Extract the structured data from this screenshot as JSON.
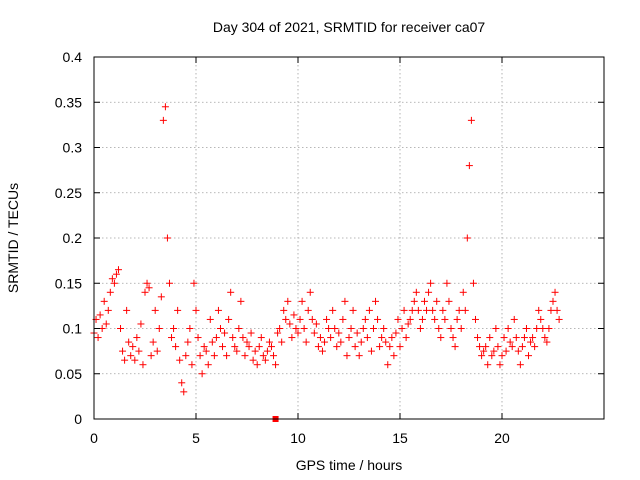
{
  "chart_data": {
    "type": "scatter",
    "title": "Day 304 of 2021, SRMTID for receiver ca07",
    "xlabel": "GPS time / hours",
    "ylabel": "SRMTID / TECUs",
    "xlim": [
      0,
      25
    ],
    "ylim": [
      0,
      0.4
    ],
    "xticks": [
      0,
      5,
      10,
      15,
      20
    ],
    "xtick_labels": [
      "0",
      "5",
      "10",
      "15",
      "20"
    ],
    "yticks": [
      0,
      0.05,
      0.1,
      0.15,
      0.2,
      0.25,
      0.3,
      0.35,
      0.4
    ],
    "ytick_labels": [
      "0",
      "0.05",
      "0.1",
      "0.15",
      "0.2",
      "0.25",
      "0.3",
      "0.35",
      "0.4"
    ],
    "grid": true,
    "marker": "plus",
    "marker_color": "#ff0000",
    "special_marker": {
      "x": 8.9,
      "y": 0.0,
      "shape": "square"
    },
    "series": [
      {
        "name": "SRMTID",
        "x": [
          0.0,
          0.1,
          0.2,
          0.3,
          0.4,
          0.5,
          0.6,
          0.7,
          0.8,
          0.9,
          1.0,
          1.1,
          1.2,
          1.3,
          1.4,
          1.5,
          1.6,
          1.7,
          1.8,
          1.9,
          2.0,
          2.1,
          2.2,
          2.3,
          2.4,
          2.5,
          2.6,
          2.7,
          2.8,
          2.9,
          3.0,
          3.1,
          3.2,
          3.3,
          3.4,
          3.5,
          3.6,
          3.7,
          3.8,
          3.9,
          4.0,
          4.1,
          4.2,
          4.3,
          4.4,
          4.5,
          4.6,
          4.7,
          4.8,
          4.9,
          5.0,
          5.1,
          5.2,
          5.3,
          5.4,
          5.5,
          5.6,
          5.7,
          5.8,
          5.9,
          6.0,
          6.1,
          6.2,
          6.3,
          6.4,
          6.5,
          6.6,
          6.7,
          6.8,
          6.9,
          7.0,
          7.1,
          7.2,
          7.3,
          7.4,
          7.5,
          7.6,
          7.7,
          7.8,
          7.9,
          8.0,
          8.1,
          8.2,
          8.3,
          8.4,
          8.5,
          8.6,
          8.7,
          8.8,
          8.9,
          9.0,
          9.1,
          9.2,
          9.3,
          9.4,
          9.5,
          9.6,
          9.7,
          9.8,
          9.9,
          10.0,
          10.1,
          10.2,
          10.3,
          10.4,
          10.5,
          10.6,
          10.7,
          10.8,
          10.9,
          11.0,
          11.1,
          11.2,
          11.3,
          11.4,
          11.5,
          11.6,
          11.7,
          11.8,
          11.9,
          12.0,
          12.1,
          12.2,
          12.3,
          12.4,
          12.5,
          12.6,
          12.7,
          12.8,
          12.9,
          13.0,
          13.1,
          13.2,
          13.3,
          13.4,
          13.5,
          13.6,
          13.7,
          13.8,
          13.9,
          14.0,
          14.1,
          14.2,
          14.3,
          14.4,
          14.5,
          14.6,
          14.7,
          14.8,
          14.9,
          15.0,
          15.1,
          15.2,
          15.3,
          15.4,
          15.5,
          15.6,
          15.7,
          15.8,
          15.9,
          16.0,
          16.1,
          16.2,
          16.3,
          16.4,
          16.5,
          16.6,
          16.7,
          16.8,
          16.9,
          17.0,
          17.1,
          17.2,
          17.3,
          17.4,
          17.5,
          17.6,
          17.7,
          17.8,
          17.9,
          18.0,
          18.1,
          18.2,
          18.3,
          18.4,
          18.5,
          18.6,
          18.7,
          18.8,
          18.9,
          19.0,
          19.1,
          19.2,
          19.3,
          19.4,
          19.5,
          19.6,
          19.7,
          19.8,
          19.9,
          20.0,
          20.1,
          20.2,
          20.3,
          20.4,
          20.5,
          20.6,
          20.7,
          20.8,
          20.9,
          21.0,
          21.1,
          21.2,
          21.3,
          21.4,
          21.5,
          21.6,
          21.7,
          21.8,
          21.9,
          22.0,
          22.1,
          22.2,
          22.3,
          22.4,
          22.5,
          22.6,
          22.7,
          22.8
        ],
        "y": [
          0.095,
          0.11,
          0.09,
          0.115,
          0.1,
          0.13,
          0.105,
          0.12,
          0.14,
          0.155,
          0.15,
          0.16,
          0.165,
          0.1,
          0.075,
          0.065,
          0.12,
          0.085,
          0.07,
          0.08,
          0.065,
          0.09,
          0.075,
          0.105,
          0.06,
          0.14,
          0.15,
          0.145,
          0.07,
          0.085,
          0.12,
          0.075,
          0.1,
          0.135,
          0.33,
          0.345,
          0.2,
          0.15,
          0.09,
          0.1,
          0.08,
          0.12,
          0.065,
          0.04,
          0.03,
          0.07,
          0.085,
          0.1,
          0.06,
          0.15,
          0.12,
          0.09,
          0.07,
          0.05,
          0.08,
          0.075,
          0.06,
          0.11,
          0.085,
          0.07,
          0.09,
          0.12,
          0.1,
          0.08,
          0.095,
          0.07,
          0.11,
          0.14,
          0.09,
          0.08,
          0.075,
          0.1,
          0.13,
          0.09,
          0.07,
          0.085,
          0.08,
          0.095,
          0.065,
          0.075,
          0.06,
          0.08,
          0.09,
          0.07,
          0.065,
          0.075,
          0.085,
          0.08,
          0.07,
          0.06,
          0.095,
          0.1,
          0.085,
          0.12,
          0.11,
          0.13,
          0.105,
          0.09,
          0.115,
          0.1,
          0.095,
          0.11,
          0.13,
          0.1,
          0.085,
          0.12,
          0.14,
          0.11,
          0.095,
          0.105,
          0.08,
          0.09,
          0.075,
          0.085,
          0.11,
          0.1,
          0.09,
          0.12,
          0.1,
          0.08,
          0.095,
          0.085,
          0.11,
          0.13,
          0.07,
          0.09,
          0.1,
          0.12,
          0.08,
          0.095,
          0.07,
          0.085,
          0.1,
          0.11,
          0.09,
          0.12,
          0.075,
          0.1,
          0.13,
          0.11,
          0.08,
          0.09,
          0.1,
          0.085,
          0.06,
          0.08,
          0.09,
          0.07,
          0.095,
          0.11,
          0.08,
          0.1,
          0.12,
          0.09,
          0.105,
          0.11,
          0.12,
          0.13,
          0.14,
          0.12,
          0.1,
          0.11,
          0.13,
          0.12,
          0.14,
          0.15,
          0.12,
          0.11,
          0.13,
          0.1,
          0.09,
          0.12,
          0.11,
          0.15,
          0.13,
          0.1,
          0.09,
          0.08,
          0.11,
          0.12,
          0.1,
          0.14,
          0.12,
          0.2,
          0.28,
          0.33,
          0.15,
          0.11,
          0.09,
          0.08,
          0.07,
          0.075,
          0.08,
          0.06,
          0.09,
          0.07,
          0.075,
          0.1,
          0.08,
          0.06,
          0.07,
          0.09,
          0.075,
          0.1,
          0.085,
          0.08,
          0.11,
          0.09,
          0.075,
          0.06,
          0.08,
          0.09,
          0.1,
          0.07,
          0.085,
          0.09,
          0.08,
          0.1,
          0.12,
          0.11,
          0.1,
          0.09,
          0.085,
          0.1,
          0.12,
          0.13,
          0.14,
          0.12,
          0.11
        ]
      }
    ]
  }
}
